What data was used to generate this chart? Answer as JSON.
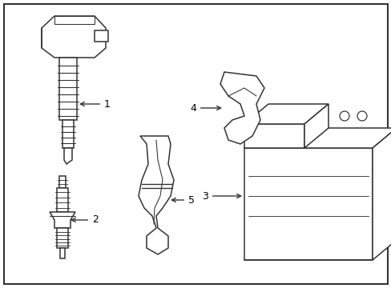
{
  "background_color": "#ffffff",
  "border_color": "#333333",
  "line_color": "#333333",
  "line_width": 1.1,
  "fig_width": 4.89,
  "fig_height": 3.6,
  "dpi": 100
}
